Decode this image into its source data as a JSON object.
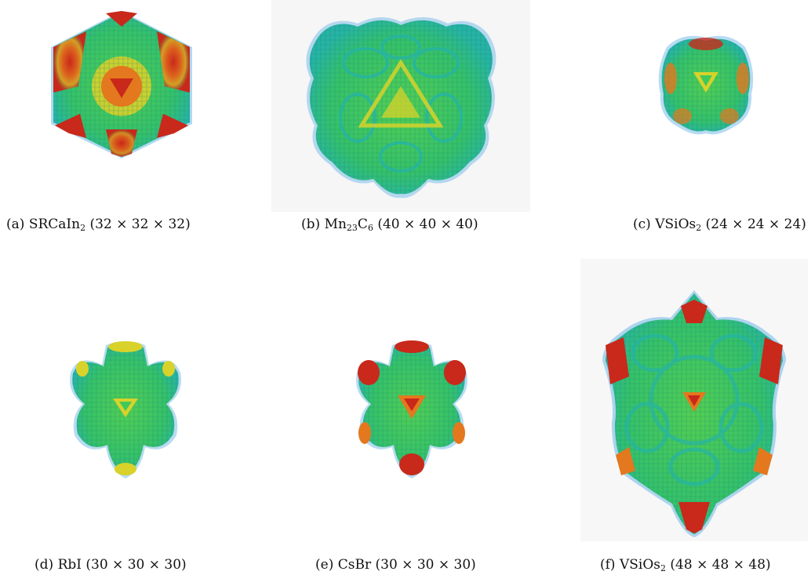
{
  "figure": {
    "panels": [
      {
        "tag": "(a)",
        "name_html": "SRCaIn<sub>2</sub>",
        "name": "SRCaIn2",
        "dims": "(32 × 32 × 32)"
      },
      {
        "tag": "(b)",
        "name_html": "Mn<sub>23</sub>C<sub>6</sub>",
        "name": "Mn23C6",
        "dims": "(40 × 40 × 40)"
      },
      {
        "tag": "(c)",
        "name_html": "VSiOs<sub>2</sub>",
        "name": "VSiOs2",
        "dims": "(24 × 24 × 24)"
      },
      {
        "tag": "(d)",
        "name_html": "RbI",
        "name": "RbI",
        "dims": "(30 × 30 × 30)"
      },
      {
        "tag": "(e)",
        "name_html": "CsBr",
        "name": "CsBr",
        "dims": "(30 × 30 × 30)"
      },
      {
        "tag": "(f)",
        "name_html": "VSiOs<sub>2</sub>",
        "name": "VSiOs2",
        "dims": "(48 × 48 × 48)"
      }
    ],
    "colors": {
      "green": "#3fc95a",
      "teal": "#25b4a6",
      "blue_fringe": "#6fb8e8",
      "yellow": "#d8d22a",
      "orange": "#e4781e",
      "red": "#c8291a"
    }
  }
}
